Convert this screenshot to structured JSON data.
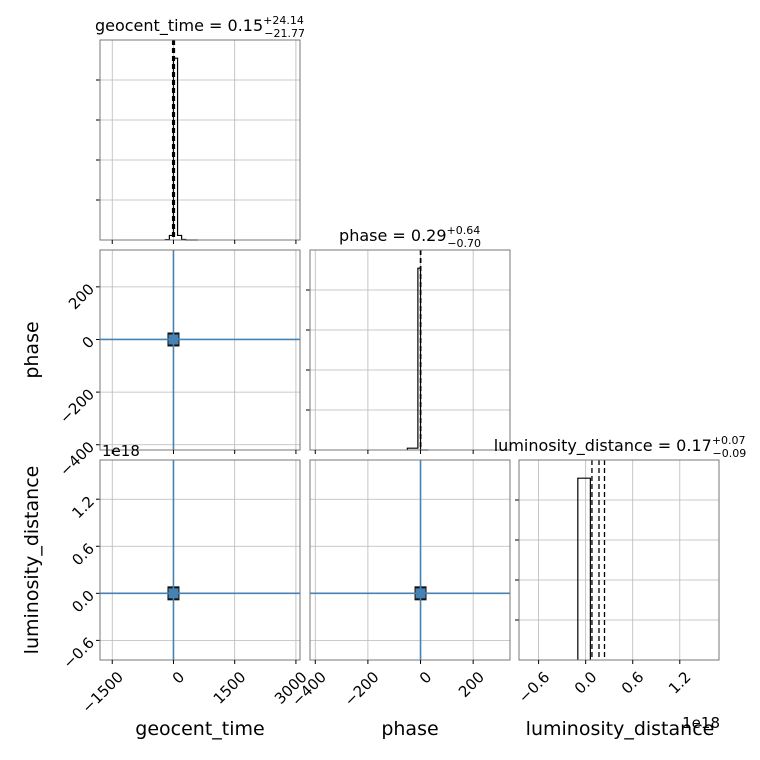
{
  "figure": {
    "scale_label": "1e18"
  },
  "chart_data": {
    "type": "corner",
    "grid": true,
    "colors": {
      "histogram": "#000000",
      "marker": "#4682b4",
      "frame": "#777777",
      "grid": "#b8b8b8"
    },
    "parameters": [
      {
        "name": "geocent_time",
        "xlabel": "geocent_time",
        "title_text": "geocent_time = 0.15",
        "title_plus": "+24.14",
        "title_minus": "−21.77",
        "median": 0.15,
        "range": [
          -1800,
          3100
        ],
        "ticks": [
          -1500,
          0,
          1500,
          3000
        ],
        "tick_labels": [
          "−1500",
          "0",
          "1500",
          "3000"
        ],
        "quantile_lines": [
          -21.62,
          0.15,
          24.29
        ],
        "hist_edges": [
          -200,
          -100,
          0,
          100,
          200,
          300,
          400,
          500,
          600
        ],
        "hist_counts": [
          2,
          25,
          1000,
          25,
          3,
          0,
          0,
          0
        ]
      },
      {
        "name": "phase",
        "xlabel": "phase",
        "ylabel": "phase",
        "title_text": "phase = 0.29",
        "title_plus": "+0.64",
        "title_minus": "−0.70",
        "median": 0.29,
        "range": [
          -420,
          340
        ],
        "ticks": [
          -400,
          -200,
          0,
          200
        ],
        "tick_labels": [
          "−400",
          "−200",
          "0",
          "200"
        ],
        "quantile_lines": [
          -0.41,
          0.29,
          0.93
        ],
        "hist_edges": [
          -50,
          -10,
          0,
          30
        ],
        "hist_counts": [
          10,
          1000,
          0
        ]
      },
      {
        "name": "luminosity_distance",
        "xlabel": "luminosity_distance",
        "ylabel": "luminosity_distance",
        "title_text": "luminosity_distance = 0.17",
        "title_plus": "+0.07",
        "title_minus": "−0.09",
        "median": 0.17,
        "range": [
          -0.85,
          1.7
        ],
        "ticks": [
          -0.6,
          0.0,
          0.6,
          1.2
        ],
        "tick_labels": [
          "−0.6",
          "0.0",
          "0.6",
          "1.2"
        ],
        "quantile_lines": [
          0.08,
          0.17,
          0.24
        ],
        "hist_edges": [
          -0.1,
          0.0,
          0.06
        ],
        "hist_counts": [
          1000,
          1000
        ]
      }
    ],
    "hist_y_range": [
      0,
      1100
    ],
    "samples_center": [
      0,
      0,
      0
    ]
  }
}
